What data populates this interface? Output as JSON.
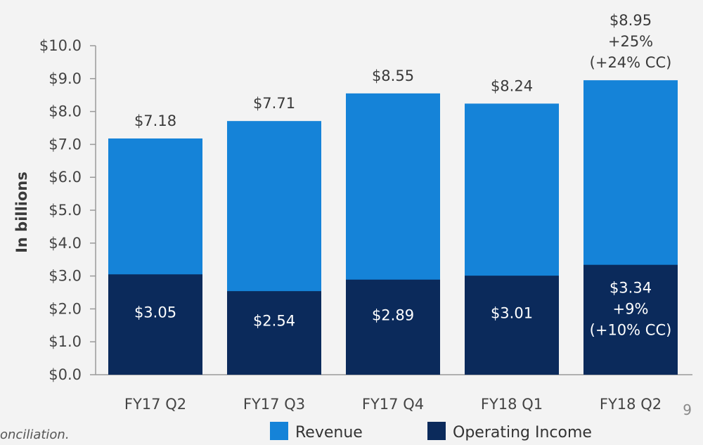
{
  "chart_data": {
    "type": "bar",
    "stacked": false,
    "ylabel": "In billions",
    "ylim": [
      0,
      10
    ],
    "yticks": [
      "$0.0",
      "$1.0",
      "$2.0",
      "$3.0",
      "$4.0",
      "$5.0",
      "$6.0",
      "$7.0",
      "$8.0",
      "$9.0",
      "$10.0"
    ],
    "categories": [
      "FY17 Q2",
      "FY17 Q3",
      "FY17 Q4",
      "FY18 Q1",
      "FY18 Q2"
    ],
    "series": [
      {
        "name": "Revenue",
        "color": "#1583d8",
        "values": [
          7.18,
          7.71,
          8.55,
          8.24,
          8.95
        ],
        "labels": [
          [
            "$7.18"
          ],
          [
            "$7.71"
          ],
          [
            "$8.55"
          ],
          [
            "$8.24"
          ],
          [
            "$8.95",
            "+25%",
            "(+24% CC)"
          ]
        ]
      },
      {
        "name": "Operating Income",
        "color": "#0b2a5b",
        "values": [
          3.05,
          2.54,
          2.89,
          3.01,
          3.34
        ],
        "labels": [
          [
            "$3.05"
          ],
          [
            "$2.54"
          ],
          [
            "$2.89"
          ],
          [
            "$3.01"
          ],
          [
            "$3.34",
            "+9%",
            "(+10% CC)"
          ]
        ]
      }
    ],
    "legend": "bottom",
    "grid": false
  },
  "footer_text": "onciliation.",
  "page_number": "9"
}
